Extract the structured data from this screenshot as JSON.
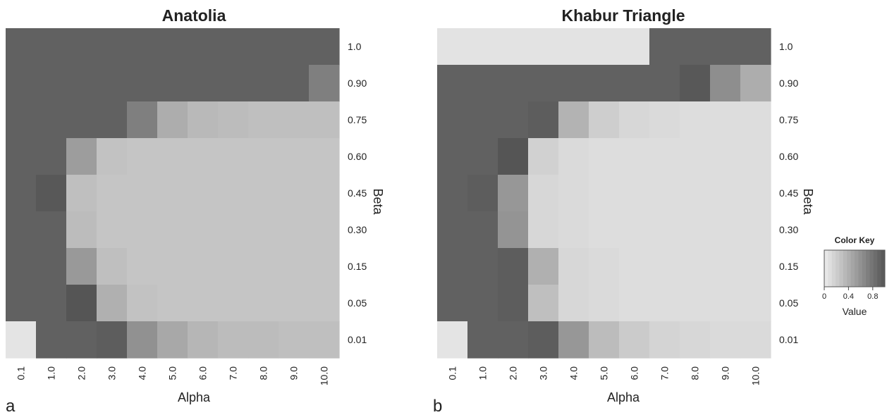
{
  "chart_data": [
    {
      "type": "heatmap",
      "title": "Anatolia",
      "panel_label": "a",
      "xlabel": "Alpha",
      "ylabel": "Beta",
      "x": [
        "0.1",
        "1.0",
        "2.0",
        "3.0",
        "4.0",
        "5.0",
        "6.0",
        "7.0",
        "8.0",
        "9.0",
        "10.0"
      ],
      "y": [
        "1.0",
        "0.90",
        "0.75",
        "0.60",
        "0.45",
        "0.30",
        "0.15",
        "0.05",
        "0.01"
      ],
      "values": [
        [
          0.92,
          0.92,
          0.92,
          0.92,
          0.92,
          0.92,
          0.92,
          0.92,
          0.92,
          0.92,
          0.92
        ],
        [
          0.92,
          0.92,
          0.92,
          0.92,
          0.92,
          0.92,
          0.92,
          0.92,
          0.92,
          0.92,
          0.72
        ],
        [
          0.92,
          0.92,
          0.92,
          0.92,
          0.72,
          0.42,
          0.34,
          0.32,
          0.3,
          0.3,
          0.3
        ],
        [
          0.92,
          0.92,
          0.52,
          0.28,
          0.26,
          0.26,
          0.26,
          0.26,
          0.26,
          0.26,
          0.26
        ],
        [
          0.92,
          0.98,
          0.3,
          0.26,
          0.26,
          0.26,
          0.26,
          0.26,
          0.26,
          0.26,
          0.26
        ],
        [
          0.92,
          0.92,
          0.32,
          0.26,
          0.26,
          0.26,
          0.26,
          0.26,
          0.26,
          0.26,
          0.26
        ],
        [
          0.92,
          0.92,
          0.55,
          0.3,
          0.26,
          0.26,
          0.26,
          0.26,
          0.26,
          0.26,
          0.26
        ],
        [
          0.92,
          0.92,
          1.0,
          0.4,
          0.28,
          0.26,
          0.26,
          0.26,
          0.26,
          0.26,
          0.26
        ],
        [
          0.05,
          0.92,
          0.92,
          0.95,
          0.6,
          0.45,
          0.36,
          0.32,
          0.32,
          0.3,
          0.3
        ]
      ]
    },
    {
      "type": "heatmap",
      "title": "Khabur Triangle",
      "panel_label": "b",
      "xlabel": "Alpha",
      "ylabel": "Beta",
      "x": [
        "0.1",
        "1.0",
        "2.0",
        "3.0",
        "4.0",
        "5.0",
        "6.0",
        "7.0",
        "8.0",
        "9.0",
        "10.0"
      ],
      "y": [
        "1.0",
        "0.90",
        "0.75",
        "0.60",
        "0.45",
        "0.30",
        "0.15",
        "0.05",
        "0.01"
      ],
      "values": [
        [
          0.06,
          0.06,
          0.06,
          0.06,
          0.06,
          0.06,
          0.06,
          0.92,
          0.92,
          0.92,
          0.92
        ],
        [
          0.92,
          0.92,
          0.92,
          0.92,
          0.92,
          0.92,
          0.92,
          0.92,
          0.98,
          0.62,
          0.42
        ],
        [
          0.92,
          0.92,
          0.92,
          0.95,
          0.38,
          0.2,
          0.14,
          0.12,
          0.1,
          0.1,
          0.1
        ],
        [
          0.92,
          0.92,
          1.05,
          0.18,
          0.12,
          0.1,
          0.1,
          0.1,
          0.1,
          0.1,
          0.1
        ],
        [
          0.92,
          0.95,
          0.56,
          0.14,
          0.12,
          0.1,
          0.1,
          0.1,
          0.1,
          0.1,
          0.1
        ],
        [
          0.92,
          0.92,
          0.58,
          0.14,
          0.12,
          0.1,
          0.1,
          0.1,
          0.1,
          0.1,
          0.1
        ],
        [
          0.92,
          0.92,
          0.95,
          0.4,
          0.14,
          0.12,
          0.1,
          0.1,
          0.1,
          0.1,
          0.1
        ],
        [
          0.92,
          0.92,
          0.95,
          0.3,
          0.14,
          0.12,
          0.1,
          0.1,
          0.1,
          0.1,
          0.1
        ],
        [
          0.05,
          0.92,
          0.92,
          0.95,
          0.56,
          0.32,
          0.22,
          0.16,
          0.14,
          0.12,
          0.12
        ]
      ]
    }
  ],
  "color_key": {
    "title": "Color Key",
    "xlabel": "Value",
    "ticks": [
      "0",
      "0.4",
      "0.8"
    ],
    "tick_values": [
      0,
      0.4,
      0.8
    ],
    "range": [
      0,
      1
    ],
    "color_low": "#ececec",
    "color_high": "#555555"
  }
}
